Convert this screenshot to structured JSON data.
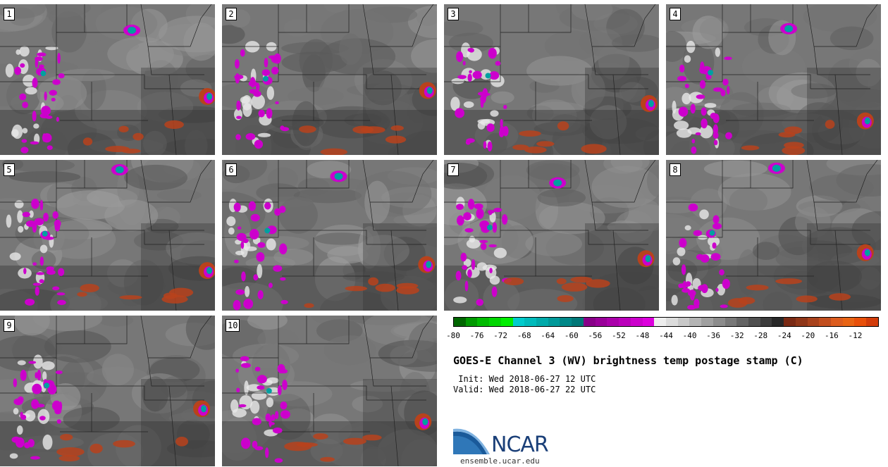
{
  "panels": [
    {
      "label": "1"
    },
    {
      "label": "2"
    },
    {
      "label": "3"
    },
    {
      "label": "4"
    },
    {
      "label": "5"
    },
    {
      "label": "6"
    },
    {
      "label": "7"
    },
    {
      "label": "8"
    },
    {
      "label": "9"
    },
    {
      "label": "10"
    }
  ],
  "colorbar": {
    "colors": [
      "#006600",
      "#009900",
      "#00bb00",
      "#00d600",
      "#00ee00",
      "#00cccc",
      "#00bbbb",
      "#00aaaa",
      "#009999",
      "#008888",
      "#007777",
      "#880088",
      "#990099",
      "#aa00aa",
      "#bb00bb",
      "#cc00cc",
      "#dd00dd",
      "#eeeeee",
      "#dcdcdc",
      "#c8c8c8",
      "#b4b4b4",
      "#a0a0a0",
      "#8c8c8c",
      "#787878",
      "#646464",
      "#505050",
      "#3c3c3c",
      "#282828",
      "#7a2a14",
      "#8f3618",
      "#a8421c",
      "#c24e1e",
      "#dc5c1e",
      "#e86414",
      "#e8500a",
      "#d23c0a"
    ],
    "ticks": [
      "-80",
      "-76",
      "-72",
      "-68",
      "-64",
      "-60",
      "-56",
      "-52",
      "-48",
      "-44",
      "-40",
      "-36",
      "-32",
      "-28",
      "-24",
      "-20",
      "-16",
      "-12"
    ]
  },
  "title": "GOES-E Channel 3 (WV) brightness temp postage stamp (C)",
  "init": " Init: Wed 2018-06-27 12 UTC",
  "valid": "Valid: Wed 2018-06-27 22 UTC",
  "logo_text": "NCAR",
  "site": "ensemble.ucar.edu",
  "colors": {
    "magenta": "#cc00cc",
    "teal": "#00a0a0",
    "orange": "#b8421c"
  }
}
